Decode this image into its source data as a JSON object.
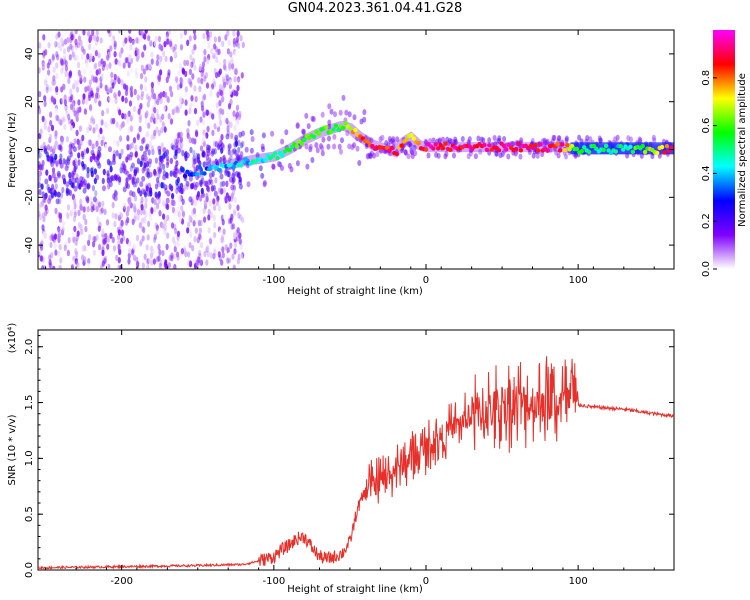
{
  "title": "GN04.2023.361.04.41.G28",
  "chart_data": [
    {
      "type": "heatmap",
      "xlabel": "Height of straight line (km)",
      "ylabel": "Frequency (Hz)",
      "xlim": [
        -255,
        163
      ],
      "ylim": [
        -50,
        50
      ],
      "x_ticks": [
        -200,
        -100,
        0,
        100
      ],
      "y_ticks": [
        -40,
        -20,
        0,
        20,
        40
      ],
      "colorbar": {
        "label": "Normalized spectral amplitude",
        "range": [
          0,
          1
        ],
        "ticks": [
          "0.0",
          "0.2",
          "0.4",
          "0.6",
          "0.8"
        ],
        "colormap": [
          "#ffffff",
          "#7f00ff",
          "#0000ff",
          "#00ffff",
          "#00ff00",
          "#ffff00",
          "#ff0000",
          "#ff00ff"
        ]
      },
      "ridge": {
        "x": [
          -160,
          -140,
          -120,
          -110,
          -100,
          -90,
          -80,
          -70,
          -60,
          -55,
          -50,
          -45,
          -40,
          -35,
          -30,
          -25,
          -20,
          -15,
          -10,
          -5,
          0,
          20,
          40,
          60,
          80,
          90,
          100,
          130,
          163
        ],
        "freq": [
          -10,
          -8,
          -5,
          -4,
          -3,
          0,
          4,
          7,
          9,
          10,
          9,
          6,
          4,
          2,
          1,
          0,
          -1,
          3,
          5,
          2,
          1,
          1,
          1,
          1,
          1,
          1,
          0,
          0,
          0
        ],
        "amplitude": [
          0.3,
          0.35,
          0.4,
          0.45,
          0.45,
          0.5,
          0.6,
          0.6,
          0.55,
          0.55,
          0.7,
          0.75,
          0.8,
          0.85,
          0.85,
          0.85,
          0.85,
          0.8,
          0.7,
          0.85,
          0.9,
          0.9,
          0.9,
          0.9,
          0.9,
          0.85,
          0.5,
          0.45,
          0.9
        ]
      }
    },
    {
      "type": "line",
      "xlabel": "Height of straight line (km)",
      "ylabel": "SNR (10 * v/v)",
      "scale_note": "(x10⁴)",
      "xlim": [
        -255,
        163
      ],
      "ylim": [
        0,
        2.15
      ],
      "x_ticks": [
        -200,
        -100,
        0,
        100
      ],
      "y_ticks": [
        0.0,
        0.5,
        1.0,
        1.5,
        2.0
      ],
      "y_tick_labels": [
        "0.0",
        "0.5",
        "1.0",
        "1.5",
        "2.0"
      ],
      "color": "#e8302a",
      "series": [
        {
          "x": [
            -255,
            -200,
            -150,
            -120,
            -110,
            -100,
            -95,
            -90,
            -85,
            -80,
            -75,
            -70,
            -65,
            -60,
            -55,
            -50,
            -45,
            -40,
            -35,
            -30,
            -25,
            -20,
            -15,
            -10,
            -5,
            0,
            10,
            20,
            30,
            40,
            50,
            60,
            70,
            80,
            90,
            100,
            110,
            120,
            130,
            140,
            150,
            163
          ],
          "values": [
            0.02,
            0.03,
            0.04,
            0.05,
            0.08,
            0.12,
            0.18,
            0.22,
            0.28,
            0.3,
            0.2,
            0.12,
            0.1,
            0.12,
            0.15,
            0.25,
            0.55,
            0.7,
            0.75,
            0.8,
            0.85,
            0.9,
            0.95,
            1.0,
            1.05,
            1.1,
            1.2,
            1.3,
            1.38,
            1.42,
            1.48,
            1.5,
            1.5,
            1.5,
            1.5,
            1.48,
            1.46,
            1.45,
            1.44,
            1.42,
            1.4,
            1.38
          ]
        }
      ]
    }
  ]
}
